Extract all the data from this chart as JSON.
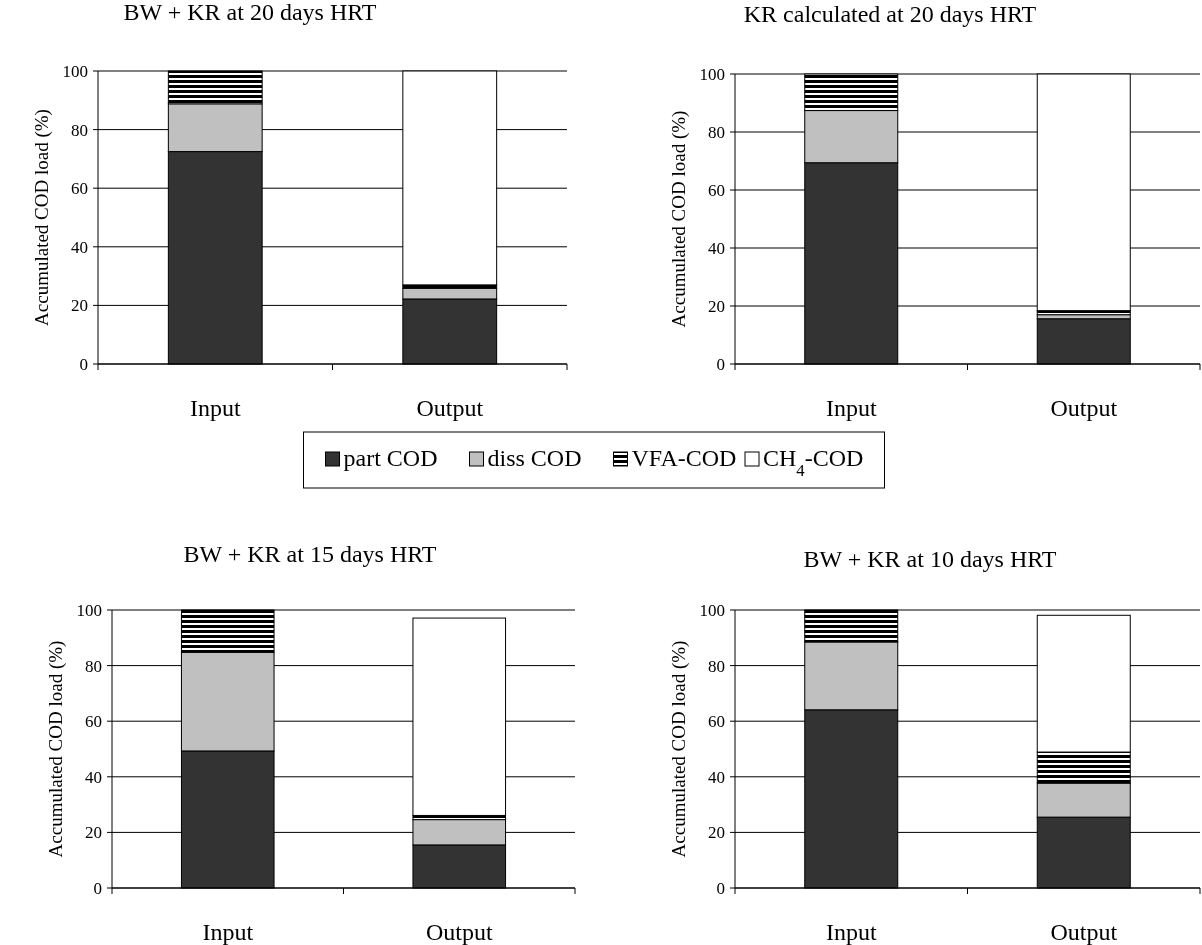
{
  "chart_data": [
    {
      "type": "bar",
      "stacked": true,
      "title": "BW + KR at 20 days HRT",
      "ylabel": "Accumulated COD load (%)",
      "categories": [
        "Input",
        "Output"
      ],
      "ylim": [
        0,
        100
      ],
      "yticks": [
        0,
        20,
        40,
        60,
        80,
        100
      ],
      "grid": "y",
      "legend": "bottom",
      "series": [
        {
          "name": "part COD",
          "color": "#333333",
          "values": [
            72.5,
            22.2
          ]
        },
        {
          "name": "diss COD",
          "color": "#c0c0c0",
          "values": [
            16.3,
            3.6
          ]
        },
        {
          "name": "VFA-COD",
          "color": "#000000",
          "values": [
            11.2,
            1.2
          ]
        },
        {
          "name": "CH$_{4}$-COD",
          "color": "#ffffff",
          "values": [
            0,
            73
          ]
        }
      ]
    },
    {
      "type": "bar",
      "stacked": true,
      "title": "KR calculated at 20 days HRT",
      "ylabel": "Accumulated COD load (%)",
      "categories": [
        "Input",
        "Output"
      ],
      "ylim": [
        0,
        100
      ],
      "yticks": [
        0,
        20,
        40,
        60,
        80,
        100
      ],
      "grid": "y",
      "series": [
        {
          "name": "part COD",
          "color": "#333333",
          "values": [
            69.4,
            15.6
          ]
        },
        {
          "name": "diss COD",
          "color": "#c0c0c0",
          "values": [
            18,
            1.4
          ]
        },
        {
          "name": "VFA-COD",
          "color": "#000000",
          "values": [
            12.6,
            1.4
          ]
        },
        {
          "name": "CH$_{4}$-COD",
          "color": "#ffffff",
          "values": [
            0,
            81.6
          ]
        }
      ]
    },
    {
      "type": "bar",
      "stacked": true,
      "title": "BW + KR at 15 days HRT",
      "ylabel": "Accumulated COD load (%)",
      "categories": [
        "Input",
        "Output"
      ],
      "ylim": [
        0,
        100
      ],
      "yticks": [
        0,
        20,
        40,
        60,
        80,
        100
      ],
      "grid": "y",
      "series": [
        {
          "name": "part COD",
          "color": "#333333",
          "values": [
            49.3,
            15.5
          ]
        },
        {
          "name": "diss COD",
          "color": "#c0c0c0",
          "values": [
            35.5,
            9.1
          ]
        },
        {
          "name": "VFA-COD",
          "color": "#000000",
          "values": [
            15.2,
            1.5
          ]
        },
        {
          "name": "CH$_{4}$-COD",
          "color": "#ffffff",
          "values": [
            0,
            71
          ]
        }
      ]
    },
    {
      "type": "bar",
      "stacked": true,
      "title": "BW + KR at 10 days HRT",
      "ylabel": "Accumulated COD load (%)",
      "categories": [
        "Input",
        "Output"
      ],
      "ylim": [
        0,
        100
      ],
      "yticks": [
        0,
        20,
        40,
        60,
        80,
        100
      ],
      "grid": "y",
      "series": [
        {
          "name": "part COD",
          "color": "#333333",
          "values": [
            64.1,
            25.5
          ]
        },
        {
          "name": "diss COD",
          "color": "#c0c0c0",
          "values": [
            24.4,
            12.2
          ]
        },
        {
          "name": "VFA-COD",
          "color": "#000000",
          "values": [
            11.5,
            11.2
          ]
        },
        {
          "name": "CH$_{4}$-COD",
          "color": "#ffffff",
          "values": [
            0,
            49.2
          ]
        }
      ]
    }
  ]
}
